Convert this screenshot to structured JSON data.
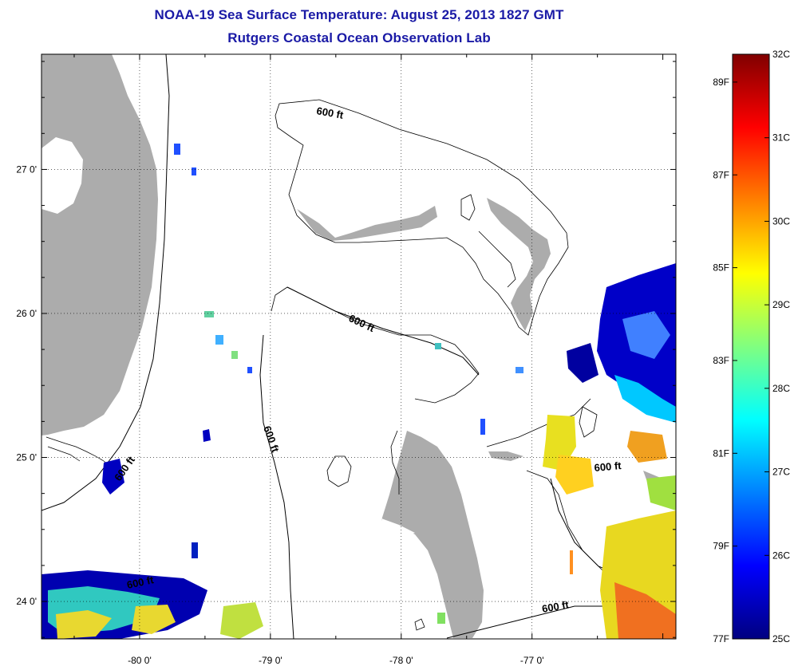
{
  "title": "NOAA-19 Sea Surface Temperature:  August 25, 2013 1827 GMT",
  "subtitle": "Rutgers Coastal Ocean Observation Lab",
  "map": {
    "lon_range": [
      -80.75,
      -75.9
    ],
    "lat_range": [
      23.74,
      27.8
    ],
    "lon_ticks": [
      {
        "value": -80,
        "label": "-80 0'"
      },
      {
        "value": -79,
        "label": "-79 0'"
      },
      {
        "value": -78,
        "label": "-78 0'"
      },
      {
        "value": -77,
        "label": "-77 0'"
      }
    ],
    "lat_ticks": [
      {
        "value": 27,
        "label": "27 0'"
      },
      {
        "value": 26,
        "label": "26 0'"
      },
      {
        "value": 25,
        "label": "25 0'"
      },
      {
        "value": 24,
        "label": "24 0'"
      }
    ],
    "contour_label": "600 ft",
    "land_color": "#acacac",
    "grid": "dotted"
  },
  "colorbar": {
    "colors": [
      "#000080",
      "#0000ff",
      "#0080ff",
      "#00ffff",
      "#80ff80",
      "#ffff00",
      "#ff8000",
      "#ff0000",
      "#800000"
    ],
    "celsius_range": [
      25,
      32
    ],
    "celsius_labels": [
      "32C",
      "31C",
      "30C",
      "29C",
      "28C",
      "27C",
      "26C",
      "25C"
    ],
    "fahrenheit_labels": [
      "89F",
      "87F",
      "85F",
      "83F",
      "81F",
      "79F",
      "77F"
    ],
    "fahrenheit_values": [
      89,
      87,
      85,
      83,
      81,
      79,
      77
    ]
  }
}
